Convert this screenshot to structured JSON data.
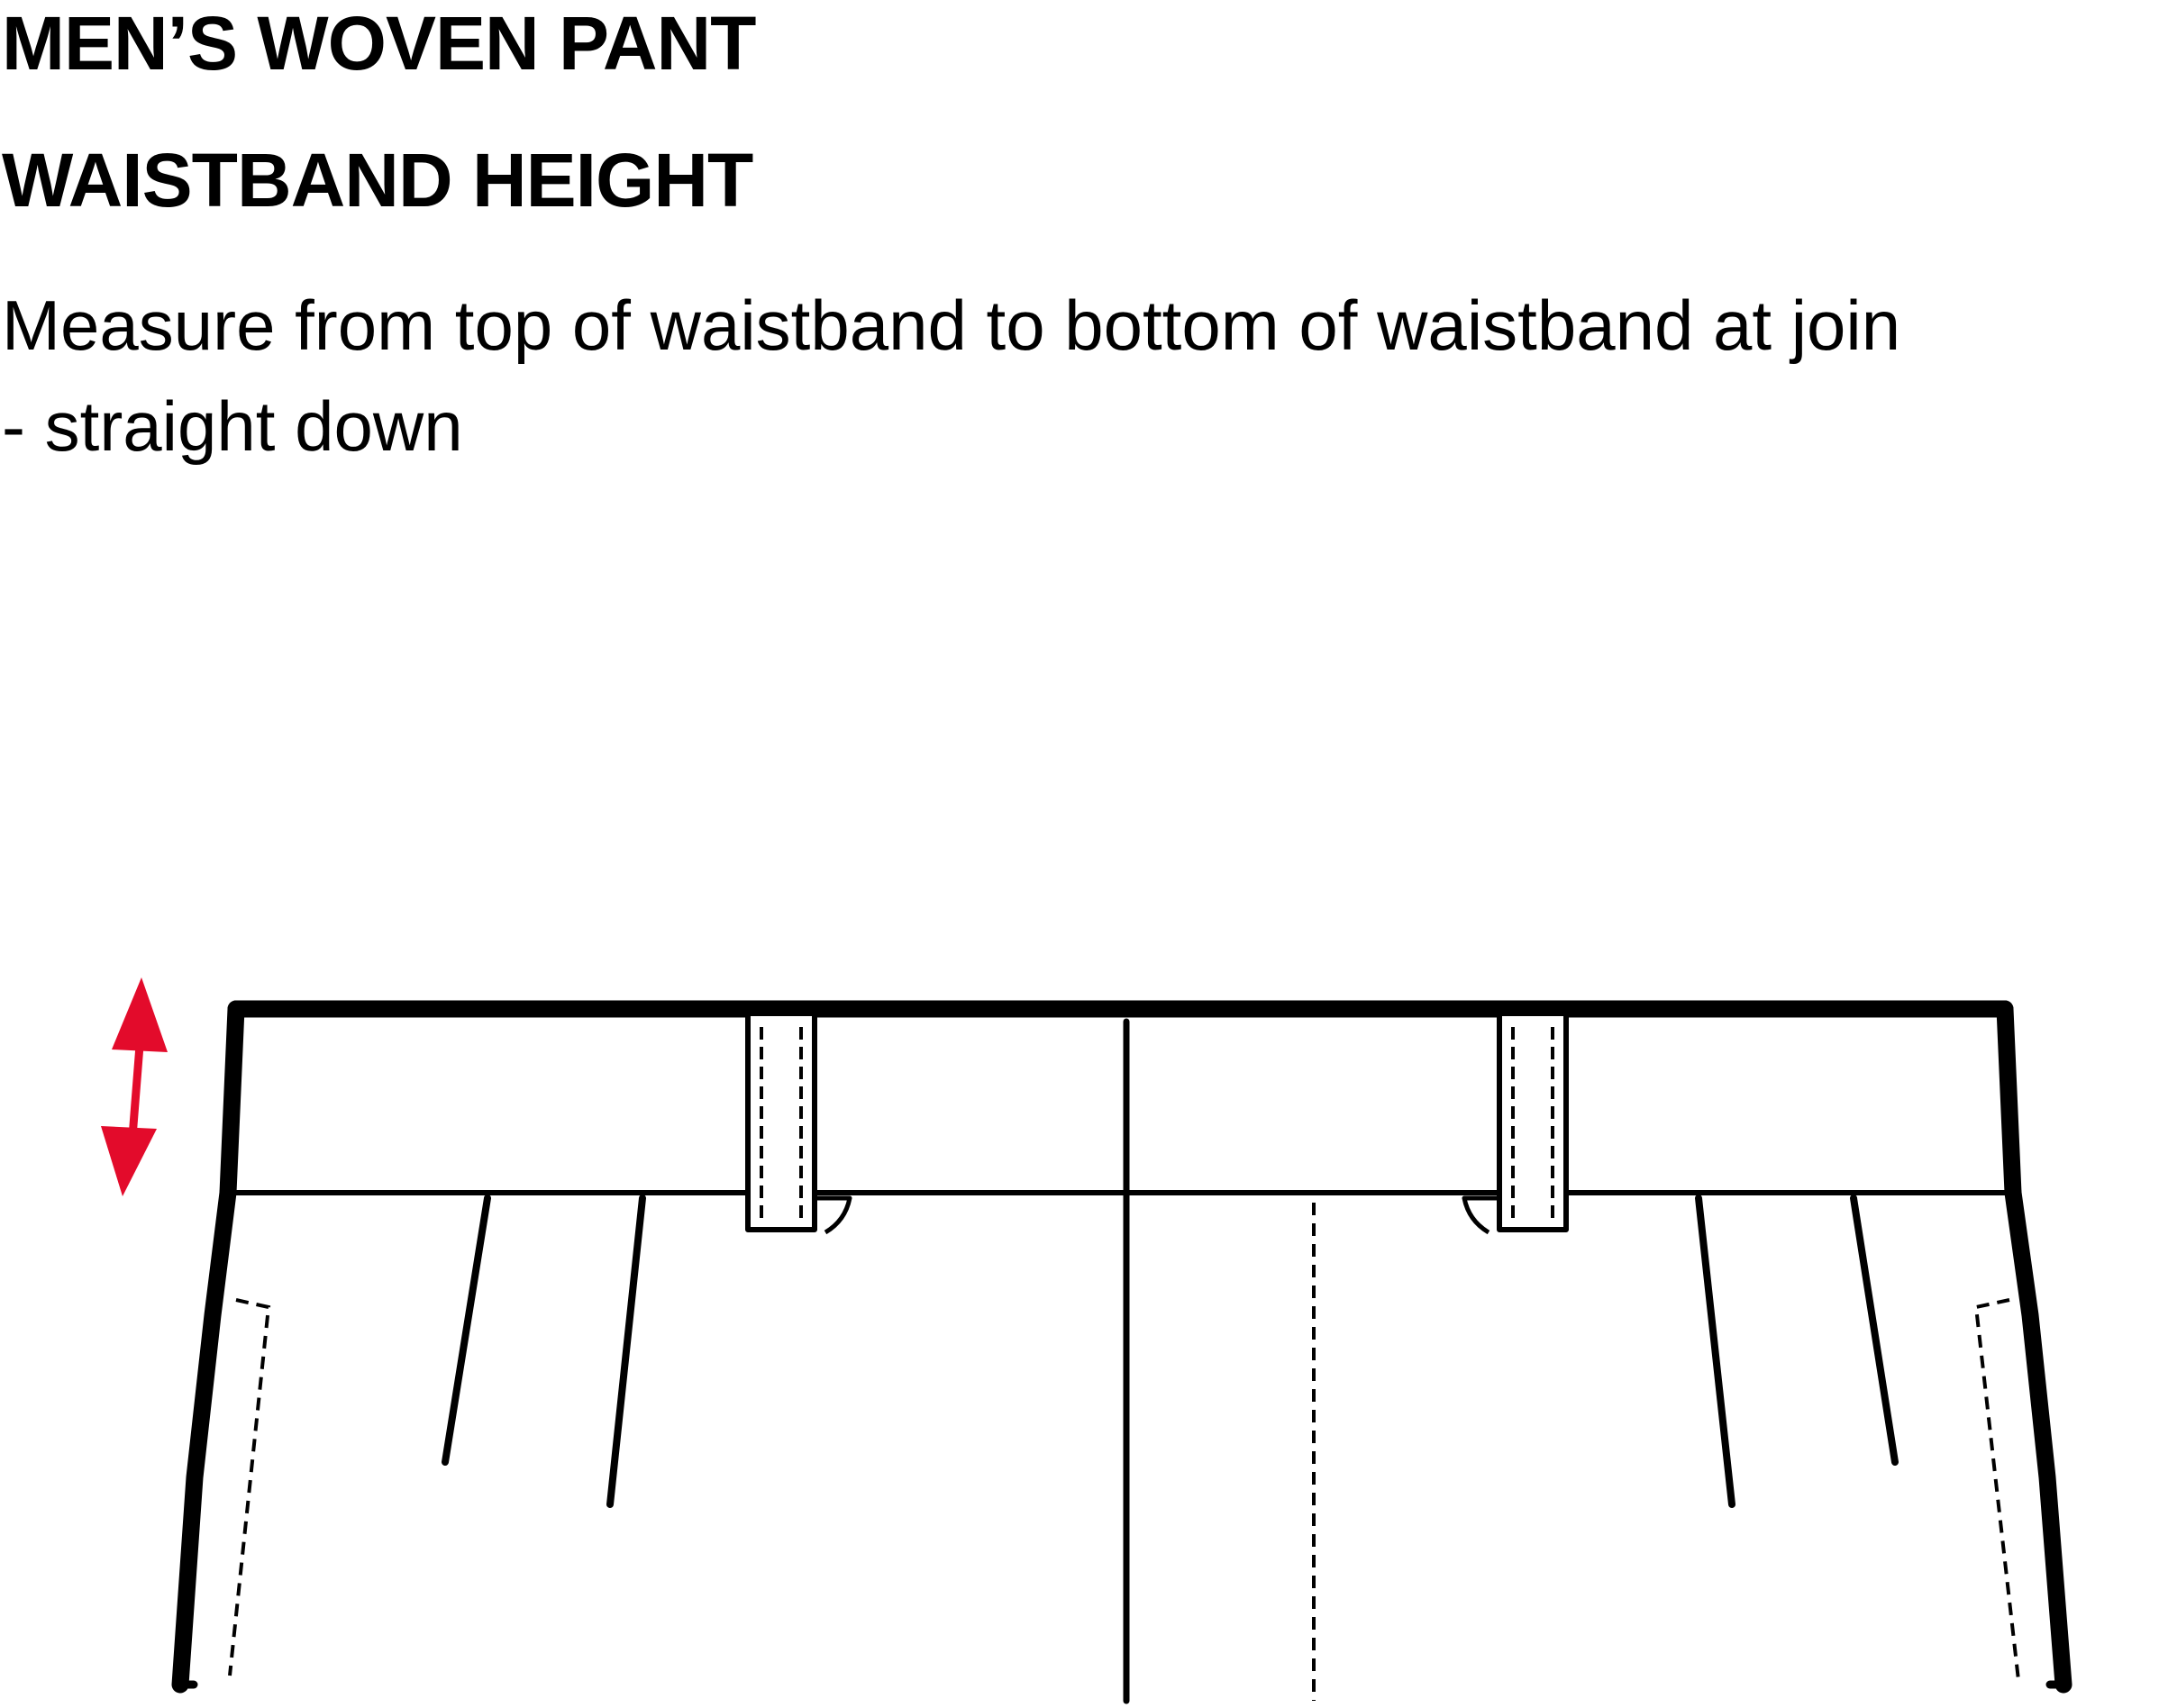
{
  "heading": {
    "title": "MEN’S WOVEN PANT",
    "subtitle": "WAISTBAND HEIGHT"
  },
  "instructions": {
    "line1": "Measure from top of waistband to bottom of waistband at join",
    "line2": "- straight down"
  },
  "colors": {
    "measure_arrow": "#e30b2b",
    "outline": "#000000"
  },
  "icons": {
    "measure": "double-headed-arrow-icon"
  }
}
